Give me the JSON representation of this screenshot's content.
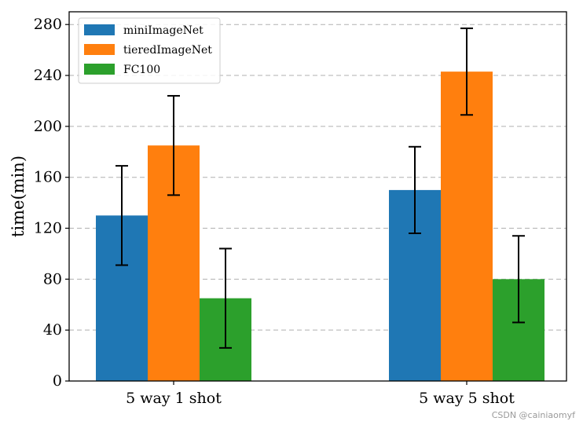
{
  "chart_data": {
    "type": "bar",
    "title": "",
    "xlabel": "",
    "ylabel": "time(min)",
    "categories": [
      "5 way 1 shot",
      "5 way 5 shot"
    ],
    "ylim": [
      0,
      290
    ],
    "yticks": [
      0,
      40,
      80,
      120,
      160,
      200,
      240,
      280
    ],
    "grid": "y-dashed",
    "legend_position": "top-left",
    "series": [
      {
        "name": "miniImageNet",
        "color": "#1f77b4",
        "values": [
          130,
          150
        ],
        "errors": [
          39,
          34
        ]
      },
      {
        "name": "tieredImageNet",
        "color": "#ff7f0e",
        "values": [
          185,
          243
        ],
        "errors": [
          39,
          34
        ]
      },
      {
        "name": "FC100",
        "color": "#2ca02c",
        "values": [
          65,
          80
        ],
        "errors": [
          39,
          34
        ]
      }
    ]
  },
  "watermark": "CSDN @cainiaomyf"
}
